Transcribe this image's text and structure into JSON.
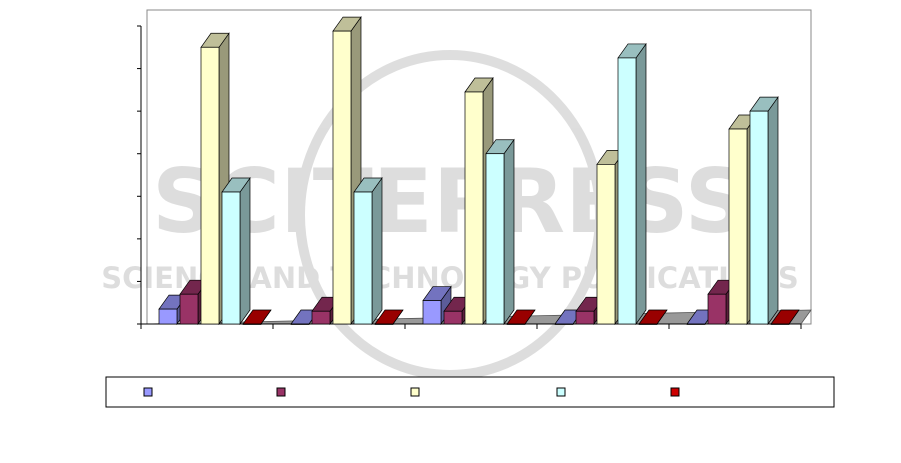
{
  "watermark": {
    "line1": "SCITEPRESS",
    "line2": "SCIENCE AND TECHNOLOGY PUBLICATIONS"
  },
  "chart_data": {
    "type": "bar",
    "style": "3d-clustered-column",
    "title": "",
    "xlabel": "",
    "ylabel": "",
    "category_count": 5,
    "categories": [
      "",
      "",
      "",
      "",
      ""
    ],
    "ylim": [
      0,
      7
    ],
    "y_ticks": [
      0,
      1,
      2,
      3,
      4,
      5,
      6,
      7
    ],
    "y_tick_labels_visible": false,
    "grid": false,
    "legend_position": "bottom",
    "legend_labels_visible": false,
    "series": [
      {
        "color": "#9999ff",
        "values": [
          0.35,
          0.0,
          0.55,
          0.0,
          0.0
        ]
      },
      {
        "color": "#993366",
        "values": [
          0.7,
          0.3,
          0.3,
          0.3,
          0.7
        ]
      },
      {
        "color": "#ffffcc",
        "values": [
          6.5,
          6.88,
          5.45,
          3.75,
          4.58
        ]
      },
      {
        "color": "#ccffff",
        "values": [
          3.1,
          3.1,
          4.0,
          6.25,
          5.0
        ]
      },
      {
        "color": "#cc0000",
        "values": [
          0.0,
          0.0,
          0.0,
          0.0,
          0.0
        ]
      }
    ]
  }
}
